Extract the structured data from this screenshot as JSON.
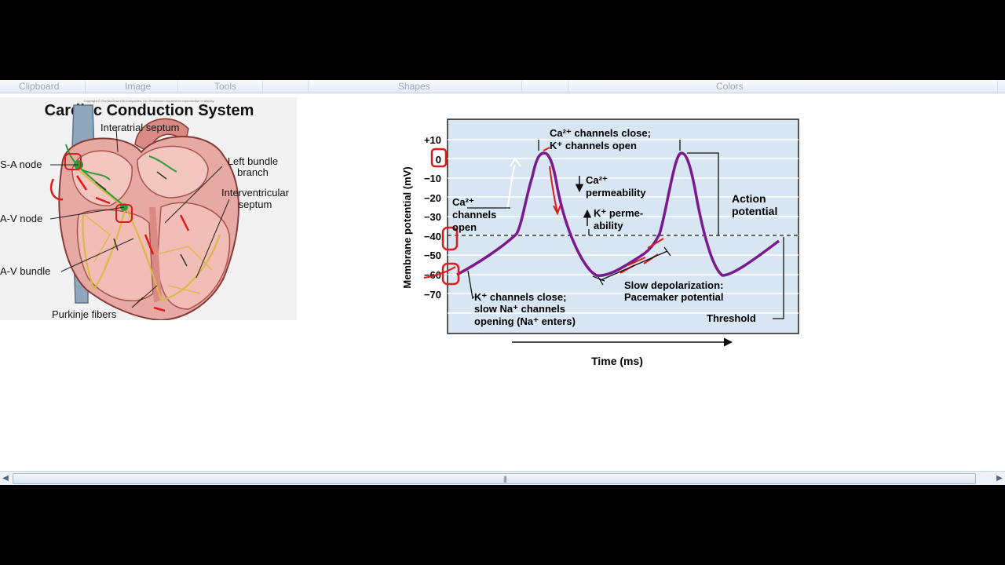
{
  "ribbon": {
    "groups": [
      {
        "id": "clipboard",
        "label": "Clipboard"
      },
      {
        "id": "image",
        "label": "Image"
      },
      {
        "id": "tools",
        "label": "Tools"
      },
      {
        "id": "shapes",
        "label": "Shapes"
      },
      {
        "id": "colors",
        "label": "Colors"
      }
    ]
  },
  "heart_figure": {
    "copyright": "Copyright © The McGraw-Hill Companies, Inc. Permission required for reproduction or display.",
    "title": "Cardiac Conduction System",
    "labels": {
      "interatrial": "Interatrial septum",
      "sa_node": "S-A node",
      "av_node": "A-V node",
      "av_bundle": "A-V bundle",
      "purkinje": "Purkinje fibers",
      "left_bundle_1": "Left bundle",
      "left_bundle_2": "branch",
      "interventricular_1": "Interventricular",
      "interventricular_2": "septum"
    }
  },
  "pacemaker_graph": {
    "ylabel": "Membrane potential (mV)",
    "xlabel": "Time (ms)",
    "yticks": [
      "+10",
      "0",
      "−10",
      "−20",
      "−30",
      "−40",
      "−50",
      "−60",
      "−70"
    ],
    "annotations": {
      "ca_close_1": "Ca²⁺ channels close;",
      "ca_close_2": "K⁺ channels open",
      "ca_perm_1": "Ca²⁺",
      "ca_perm_2": "permeability",
      "k_perm_1": "K⁺ perme-",
      "k_perm_2": "ability",
      "ca_open_1": "Ca²⁺",
      "ca_open_2": "channels",
      "ca_open_3": "open",
      "action_1": "Action",
      "action_2": "potential",
      "slow_1": "Slow depolarization:",
      "slow_2": "Pacemaker potential",
      "k_close_1": "K⁺ channels close;",
      "k_close_2": "slow Na⁺ channels",
      "k_close_3": "opening (Na⁺ enters)",
      "threshold": "Threshold"
    }
  }
}
